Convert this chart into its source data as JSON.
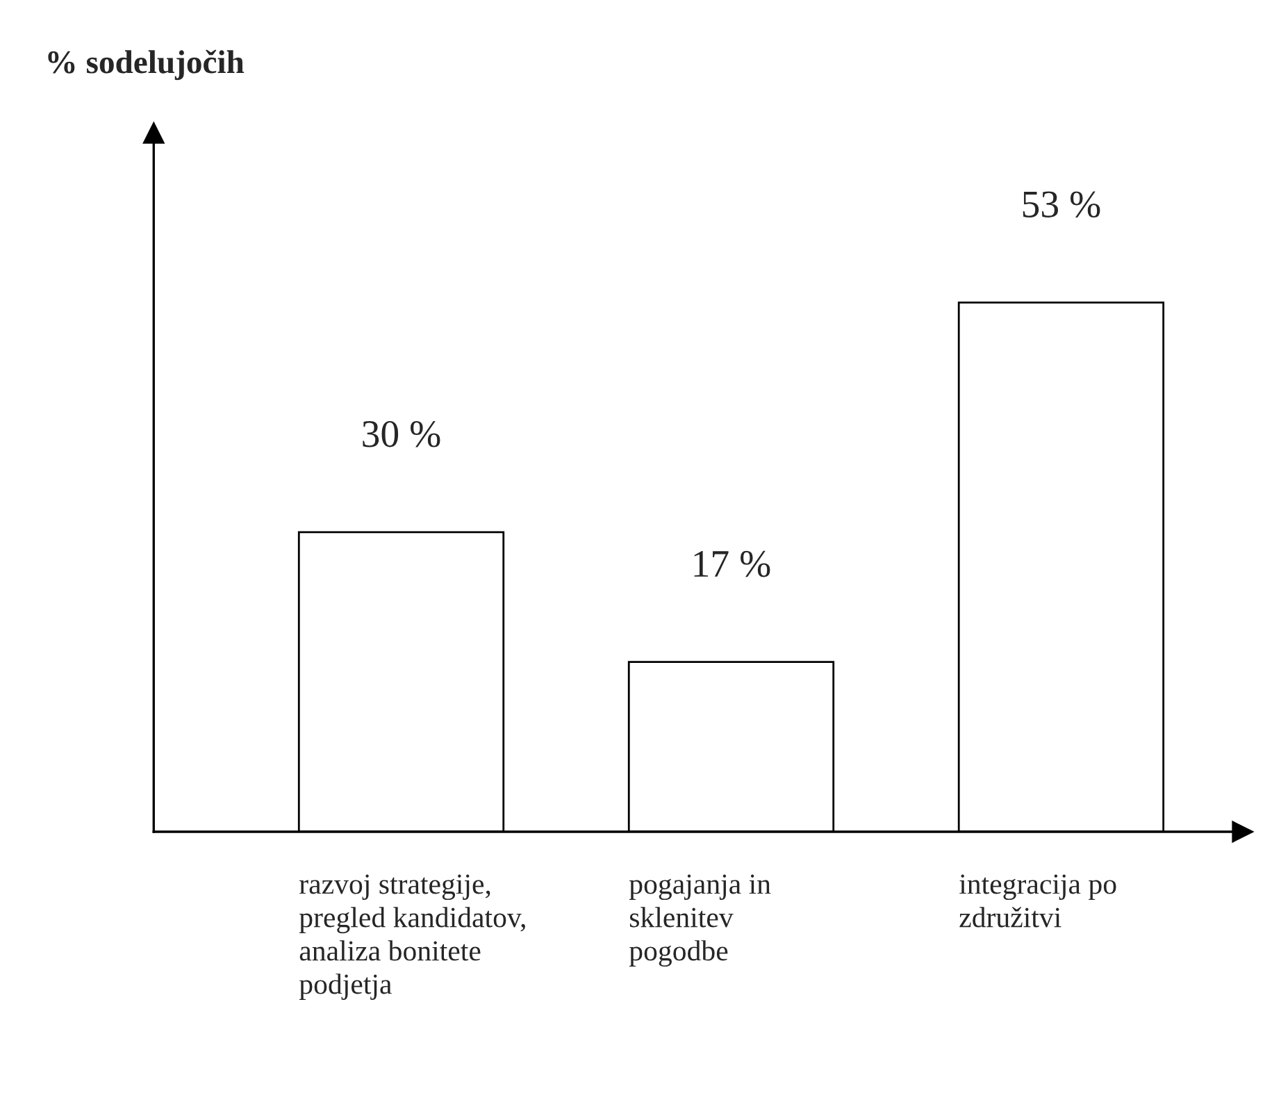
{
  "chart_data": {
    "type": "bar",
    "annotations": [
      "% sodelujočih"
    ],
    "categories": [
      "razvoj strategije,\npregled kandidatov,\nanaliza bonitete\npodjetja",
      "pogajanja in\nsklenitev\npogodbe",
      "integracija po\nzdružitvi"
    ],
    "values": [
      30,
      17,
      53
    ],
    "color": "#ffffff",
    "value_labels": [
      "30 %",
      "17 %",
      "53 %"
    ],
    "legend": false
  }
}
